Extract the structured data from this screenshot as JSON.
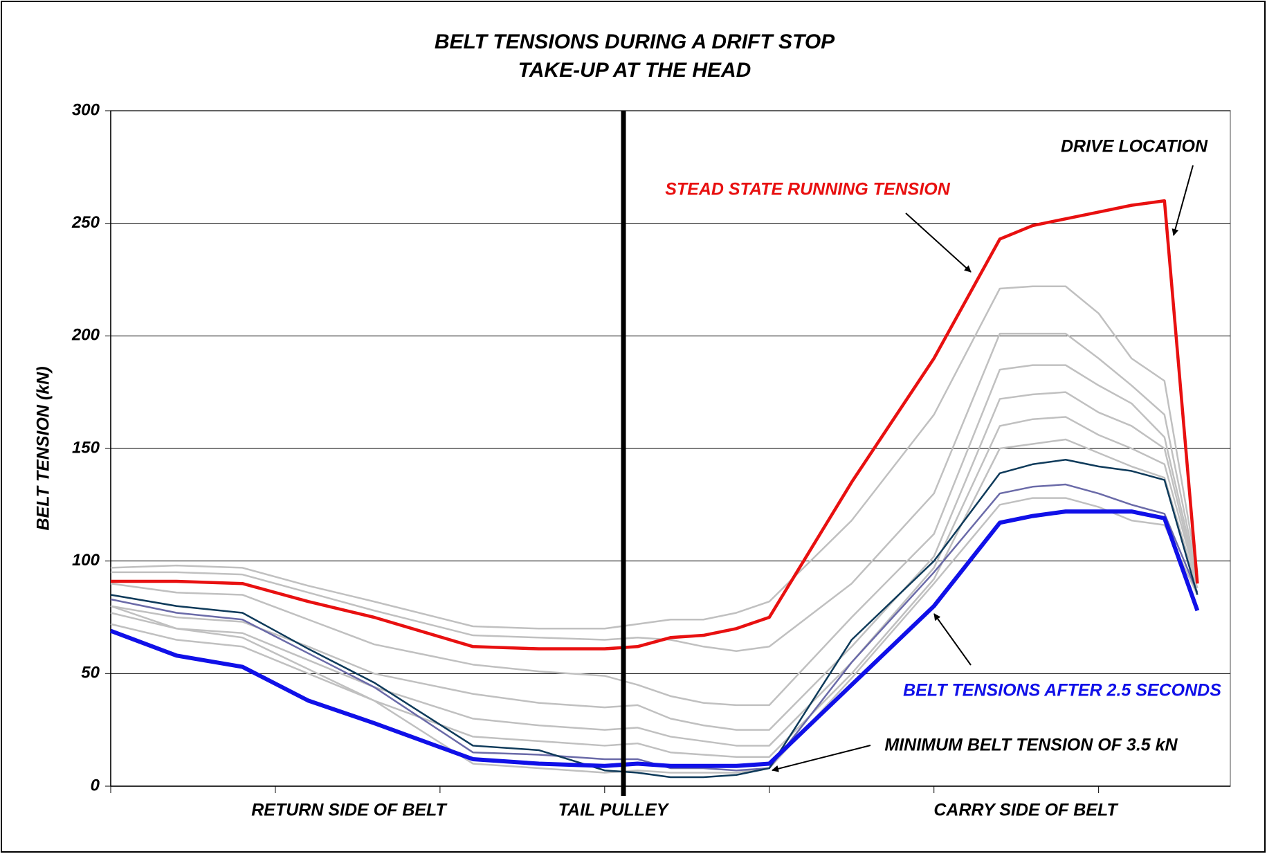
{
  "chart_data": {
    "type": "line",
    "title": "BELT TENSIONS DURING A DRIFT STOP",
    "subtitle": "TAKE-UP AT THE HEAD",
    "y_label": "BELT TENSION (kN)",
    "x_labels": [
      "RETURN SIDE OF BELT",
      "TAIL PULLEY",
      "CARRY SIDE OF BELT"
    ],
    "annotations": [
      {
        "text": "STEAD STATE RUNNING TENSION",
        "color": "#e81010"
      },
      {
        "text": "DRIVE LOCATION",
        "color": "#000000"
      },
      {
        "text": "BELT TENSIONS AFTER 2.5 SECONDS",
        "color": "#1010e8"
      },
      {
        "text": "MINIMUM BELT TENSION OF 3.5 kN",
        "color": "#000000"
      }
    ],
    "x": [
      0,
      0.4,
      0.8,
      1.2,
      1.6,
      2.2,
      2.6,
      3.0,
      3.2,
      3.4,
      3.6,
      3.8,
      4.0,
      4.5,
      5.0,
      5.4,
      5.6,
      5.8,
      6.0,
      6.2,
      6.4,
      6.6
    ],
    "xlim": [
      0,
      6.8
    ],
    "xticks": [
      0,
      1,
      2,
      3,
      4,
      5,
      6
    ],
    "ylim": [
      0,
      300
    ],
    "yticks": [
      0,
      50,
      100,
      150,
      200,
      250,
      300
    ],
    "grid": true,
    "series": [
      {
        "color": "#c0c0c0",
        "width": 2.5,
        "values": [
          97,
          98,
          97,
          89,
          82,
          71,
          70,
          70,
          72,
          74,
          74,
          77,
          82,
          118,
          165,
          221,
          222,
          222,
          210,
          190,
          180,
          95
        ]
      },
      {
        "color": "#c0c0c0",
        "width": 2.5,
        "values": [
          95,
          95,
          94,
          86,
          78,
          67,
          66,
          65,
          66,
          65,
          62,
          60,
          62,
          90,
          130,
          201,
          201,
          201,
          190,
          178,
          165,
          93
        ]
      },
      {
        "color": "#c0c0c0",
        "width": 2.5,
        "values": [
          90,
          86,
          85,
          74,
          63,
          54,
          51,
          49,
          45,
          40,
          37,
          36,
          36,
          75,
          112,
          185,
          187,
          187,
          178,
          170,
          155,
          92
        ]
      },
      {
        "color": "#c0c0c0",
        "width": 2.5,
        "values": [
          80,
          75,
          73,
          62,
          50,
          41,
          37,
          35,
          36,
          30,
          27,
          25,
          25,
          62,
          102,
          172,
          174,
          175,
          166,
          160,
          150,
          90
        ]
      },
      {
        "color": "#c0c0c0",
        "width": 2.5,
        "values": [
          77,
          70,
          68,
          56,
          44,
          30,
          27,
          25,
          26,
          22,
          20,
          18,
          18,
          55,
          97,
          160,
          163,
          164,
          156,
          150,
          143,
          90
        ]
      },
      {
        "color": "#c0c0c0",
        "width": 2.5,
        "values": [
          72,
          65,
          62,
          50,
          38,
          22,
          20,
          18,
          19,
          15,
          14,
          13,
          13,
          50,
          92,
          150,
          152,
          154,
          148,
          142,
          137,
          88
        ]
      },
      {
        "color": "#c0c0c0",
        "width": 2.5,
        "values": [
          80,
          70,
          66,
          52,
          38,
          10,
          8,
          6,
          7,
          6,
          6,
          6,
          8,
          48,
          90,
          125,
          128,
          128,
          124,
          118,
          116,
          85
        ]
      },
      {
        "color": "#6a6aa8",
        "width": 2.5,
        "values": [
          83,
          77,
          74,
          59,
          44,
          15,
          14,
          12,
          12,
          8,
          8,
          7,
          8,
          55,
          95,
          130,
          133,
          134,
          130,
          125,
          121,
          86
        ]
      },
      {
        "color": "#0e3a5a",
        "width": 2.5,
        "values": [
          85,
          80,
          77,
          61,
          46,
          18,
          16,
          7,
          6,
          4,
          4,
          5,
          8,
          65,
          100,
          139,
          143,
          145,
          142,
          140,
          136,
          85
        ]
      },
      {
        "color": "#e81010",
        "width": 4.5,
        "values": [
          91,
          91,
          90,
          82,
          75,
          62,
          61,
          61,
          62,
          66,
          67,
          70,
          75,
          135,
          190,
          243,
          249,
          252,
          255,
          258,
          260,
          90
        ]
      },
      {
        "color": "#1010e8",
        "width": 6,
        "values": [
          69,
          58,
          53,
          38,
          28,
          12,
          10,
          9,
          10,
          9,
          9,
          9,
          10,
          45,
          80,
          117,
          120,
          122,
          122,
          122,
          119,
          78
        ]
      }
    ]
  }
}
